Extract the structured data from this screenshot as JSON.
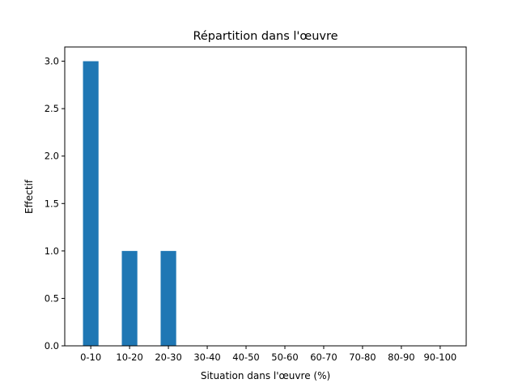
{
  "chart_data": {
    "type": "bar",
    "title": "Répartition dans l'œuvre",
    "xlabel": "Situation dans l'œuvre (%)",
    "ylabel": "Effectif",
    "categories": [
      "0-10",
      "10-20",
      "20-30",
      "30-40",
      "40-50",
      "50-60",
      "60-70",
      "70-80",
      "80-90",
      "90-100"
    ],
    "values": [
      3,
      1,
      1,
      0,
      0,
      0,
      0,
      0,
      0,
      0
    ],
    "ylim": [
      0,
      3.15
    ],
    "yticks": [
      "0.0",
      "0.5",
      "1.0",
      "1.5",
      "2.0",
      "2.5",
      "3.0"
    ],
    "bar_color": "#1f77b4",
    "grid": false,
    "legend": "none"
  }
}
